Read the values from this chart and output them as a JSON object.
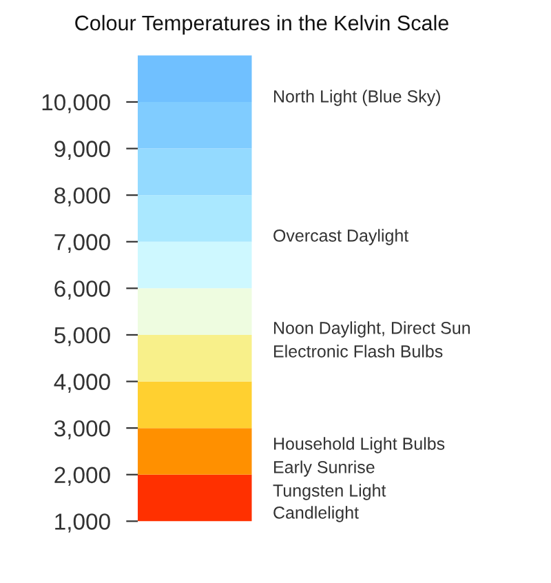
{
  "chart_data": {
    "type": "bar",
    "title": "Colour Temperatures in the Kelvin Scale",
    "categories": [
      null
    ],
    "stacked": true,
    "series": [
      {
        "color": "#ff3000",
        "values": [
          2000
        ]
      },
      {
        "color": "#ff9000",
        "values": [
          1000
        ]
      },
      {
        "color": "#ffd030",
        "values": [
          1000
        ]
      },
      {
        "color": "#f8f08a",
        "values": [
          1000
        ]
      },
      {
        "color": "#eefce0",
        "values": [
          1000
        ]
      },
      {
        "color": "#cef8ff",
        "values": [
          1000
        ]
      },
      {
        "color": "#aae8ff",
        "values": [
          1000
        ]
      },
      {
        "color": "#94daff",
        "values": [
          1000
        ]
      },
      {
        "color": "#80ccff",
        "values": [
          1000
        ]
      },
      {
        "color": "#70c0ff",
        "values": [
          1000
        ]
      }
    ],
    "ylim": [
      1000,
      11000
    ],
    "yticks": [
      {
        "value": 1000,
        "label": "1,000"
      },
      {
        "value": 2000,
        "label": "2,000"
      },
      {
        "value": 3000,
        "label": "3,000"
      },
      {
        "value": 4000,
        "label": "4,000"
      },
      {
        "value": 5000,
        "label": "5,000"
      },
      {
        "value": 6000,
        "label": "6,000"
      },
      {
        "value": 7000,
        "label": "7,000"
      },
      {
        "value": 8000,
        "label": "8,000"
      },
      {
        "value": 9000,
        "label": "9,000"
      },
      {
        "value": 10000,
        "label": "10,000"
      }
    ],
    "annotations": [
      "North Light (Blue Sky)",
      "Overcast Daylight",
      "Noon Daylight, Direct Sun",
      "Electronic Flash Bulbs",
      "Household Light Bulbs",
      "Early Sunrise",
      "Tungsten Light",
      "Candlelight"
    ]
  }
}
